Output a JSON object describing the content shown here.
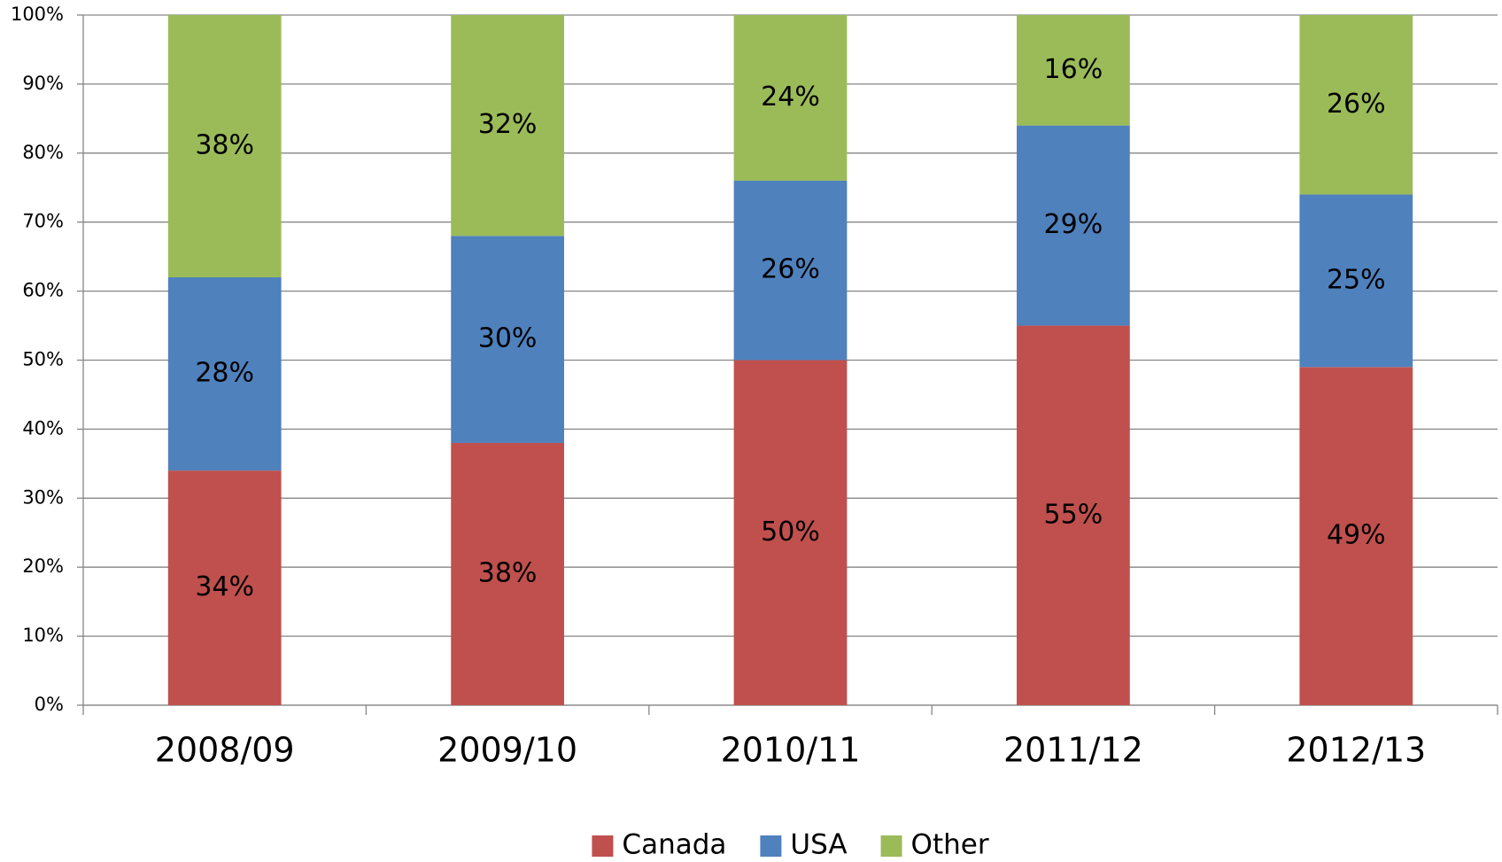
{
  "chart_data": {
    "type": "stacked_bar",
    "categories": [
      "2008/09",
      "2009/10",
      "2010/11",
      "2011/12",
      "2012/13"
    ],
    "series": [
      {
        "name": "Canada",
        "color": "#c0504d",
        "values": [
          34,
          38,
          50,
          55,
          49
        ],
        "value_labels": [
          "34%",
          "38%",
          "50%",
          "55%",
          "49%"
        ]
      },
      {
        "name": "USA",
        "color": "#4f81bd",
        "values": [
          28,
          30,
          26,
          29,
          25
        ],
        "value_labels": [
          "28%",
          "30%",
          "26%",
          "29%",
          "25%"
        ]
      },
      {
        "name": "Other",
        "color": "#9bbb59",
        "values": [
          38,
          32,
          24,
          16,
          26
        ],
        "value_labels": [
          "38%",
          "32%",
          "24%",
          "16%",
          "26%"
        ]
      }
    ],
    "ylim": [
      0,
      100
    ],
    "yticks": [
      {
        "value": 0,
        "label": "0%"
      },
      {
        "value": 10,
        "label": "10%"
      },
      {
        "value": 20,
        "label": "20%"
      },
      {
        "value": 30,
        "label": "30%"
      },
      {
        "value": 40,
        "label": "40%"
      },
      {
        "value": 50,
        "label": "50%"
      },
      {
        "value": 60,
        "label": "60%"
      },
      {
        "value": 70,
        "label": "70%"
      },
      {
        "value": 80,
        "label": "80%"
      },
      {
        "value": 90,
        "label": "90%"
      },
      {
        "value": 100,
        "label": "100%"
      }
    ],
    "grid": true,
    "legend": "bottom"
  }
}
